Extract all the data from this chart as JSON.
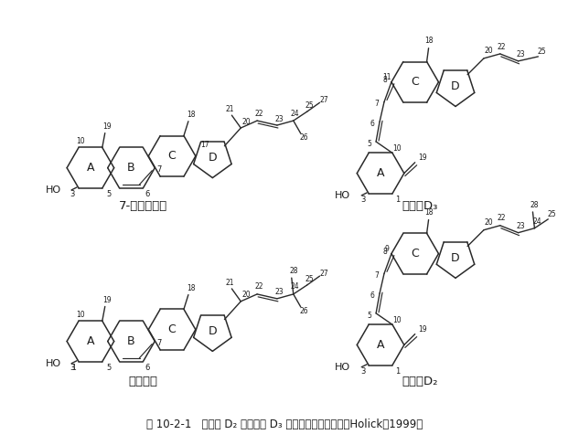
{
  "caption": "图 10-2-1   维生素 D₂ 和维生素 D₃ 的前体及其化学结构（Holick，1999）",
  "background_color": "#ffffff",
  "figsize": [
    6.21,
    4.87
  ],
  "dpi": 100,
  "label_tl": "7-脱氢胆固醇",
  "label_tr": "维生素D₃",
  "label_bl": "麦角固醇",
  "label_br": "维生素D₂"
}
